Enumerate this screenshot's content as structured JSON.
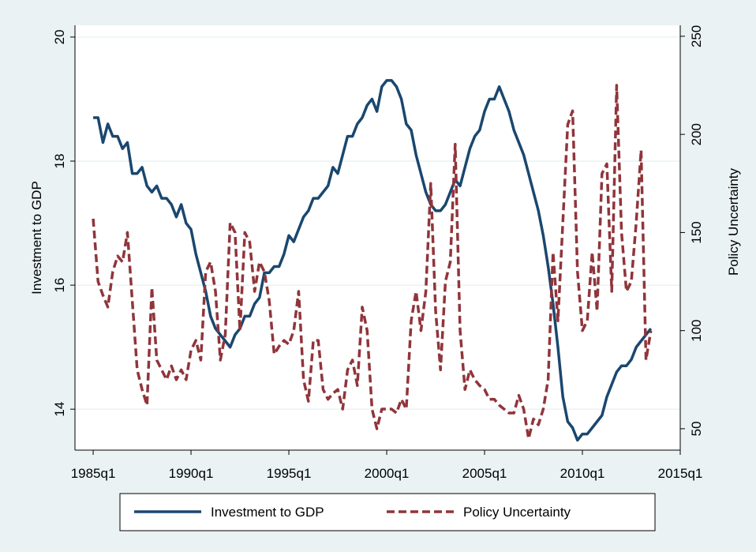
{
  "chart_data": {
    "type": "line",
    "x": [
      1985,
      1985.25,
      1985.5,
      1985.75,
      1986,
      1986.25,
      1986.5,
      1986.75,
      1987,
      1987.25,
      1987.5,
      1987.75,
      1988,
      1988.25,
      1988.5,
      1988.75,
      1989,
      1989.25,
      1989.5,
      1989.75,
      1990,
      1990.25,
      1990.5,
      1990.75,
      1991,
      1991.25,
      1991.5,
      1991.75,
      1992,
      1992.25,
      1992.5,
      1992.75,
      1993,
      1993.25,
      1993.5,
      1993.75,
      1994,
      1994.25,
      1994.5,
      1994.75,
      1995,
      1995.25,
      1995.5,
      1995.75,
      1996,
      1996.25,
      1996.5,
      1996.75,
      1997,
      1997.25,
      1997.5,
      1997.75,
      1998,
      1998.25,
      1998.5,
      1998.75,
      1999,
      1999.25,
      1999.5,
      1999.75,
      2000,
      2000.25,
      2000.5,
      2000.75,
      2001,
      2001.25,
      2001.5,
      2001.75,
      2002,
      2002.25,
      2002.5,
      2002.75,
      2003,
      2003.25,
      2003.5,
      2003.75,
      2004,
      2004.25,
      2004.5,
      2004.75,
      2005,
      2005.25,
      2005.5,
      2005.75,
      2006,
      2006.25,
      2006.5,
      2006.75,
      2007,
      2007.25,
      2007.5,
      2007.75,
      2008,
      2008.25,
      2008.5,
      2008.75,
      2009,
      2009.25,
      2009.5,
      2009.75,
      2010,
      2010.25,
      2010.5,
      2010.75,
      2011,
      2011.25,
      2011.5,
      2011.75,
      2012,
      2012.25,
      2012.5,
      2012.75,
      2013,
      2013.25,
      2013.5
    ],
    "series": [
      {
        "name": "Investment to GDP",
        "color": "#1a476f",
        "dash": "solid",
        "values": [
          18.7,
          18.7,
          18.3,
          18.6,
          18.4,
          18.4,
          18.2,
          18.3,
          17.8,
          17.8,
          17.9,
          17.6,
          17.5,
          17.6,
          17.4,
          17.4,
          17.3,
          17.1,
          17.3,
          17.0,
          16.9,
          16.5,
          16.2,
          15.9,
          15.5,
          15.3,
          15.2,
          15.1,
          15.0,
          15.2,
          15.3,
          15.5,
          15.5,
          15.7,
          15.8,
          16.2,
          16.2,
          16.3,
          16.3,
          16.5,
          16.8,
          16.7,
          16.9,
          17.1,
          17.2,
          17.4,
          17.4,
          17.5,
          17.6,
          17.9,
          17.8,
          18.1,
          18.4,
          18.4,
          18.6,
          18.7,
          18.9,
          19.0,
          18.8,
          19.2,
          19.3,
          19.3,
          19.2,
          19.0,
          18.6,
          18.5,
          18.1,
          17.8,
          17.5,
          17.3,
          17.2,
          17.2,
          17.3,
          17.5,
          17.7,
          17.6,
          17.9,
          18.2,
          18.4,
          18.5,
          18.8,
          19.0,
          19.0,
          19.2,
          19.0,
          18.8,
          18.5,
          18.3,
          18.1,
          17.8,
          17.5,
          17.2,
          16.8,
          16.3,
          15.7,
          15.0,
          14.2,
          13.8,
          13.7,
          13.5,
          13.6,
          13.6,
          13.7,
          13.8,
          13.9,
          14.2,
          14.4,
          14.6,
          14.7,
          14.7,
          14.8,
          15.0,
          15.1,
          15.2,
          15.3
        ]
      },
      {
        "name": "Policy Uncertainty",
        "color": "#90353b",
        "dash": "dashed",
        "axis": "y2",
        "values": [
          157,
          125,
          118,
          112,
          130,
          138,
          135,
          150,
          115,
          80,
          70,
          62,
          122,
          85,
          80,
          75,
          82,
          75,
          80,
          75,
          90,
          95,
          85,
          130,
          135,
          120,
          85,
          98,
          155,
          150,
          100,
          150,
          145,
          120,
          135,
          130,
          115,
          88,
          92,
          95,
          93,
          100,
          120,
          75,
          64,
          95,
          95,
          70,
          65,
          68,
          70,
          60,
          80,
          85,
          72,
          112,
          100,
          60,
          50,
          60,
          60,
          60,
          58,
          65,
          60,
          105,
          120,
          100,
          120,
          175,
          110,
          80,
          125,
          135,
          195,
          100,
          70,
          80,
          75,
          72,
          70,
          65,
          65,
          62,
          60,
          58,
          58,
          67,
          60,
          45,
          55,
          52,
          60,
          75,
          140,
          105,
          155,
          205,
          212,
          130,
          100,
          105,
          140,
          110,
          180,
          185,
          120,
          225,
          150,
          120,
          125,
          155,
          192,
          85,
          100
        ]
      }
    ],
    "xlim": [
      1984.07,
      2015
    ],
    "xticks": [
      {
        "value": 1985,
        "label": "1985q1"
      },
      {
        "value": 1990,
        "label": "1990q1"
      },
      {
        "value": 1995,
        "label": "1995q1"
      },
      {
        "value": 2000,
        "label": "2000q1"
      },
      {
        "value": 2005,
        "label": "2005q1"
      },
      {
        "value": 2010,
        "label": "2010q1"
      },
      {
        "value": 2015,
        "label": "2015q1"
      }
    ],
    "ylim": [
      13.34,
      20.19
    ],
    "yticks": [
      14,
      16,
      18,
      20
    ],
    "y2lim": [
      39.1,
      255.6
    ],
    "y2ticks": [
      50,
      100,
      150,
      200,
      250
    ],
    "ylabel": "Investment to GDP",
    "y2label": "Policy Uncertainty",
    "grid": true,
    "legend": "bottom"
  }
}
